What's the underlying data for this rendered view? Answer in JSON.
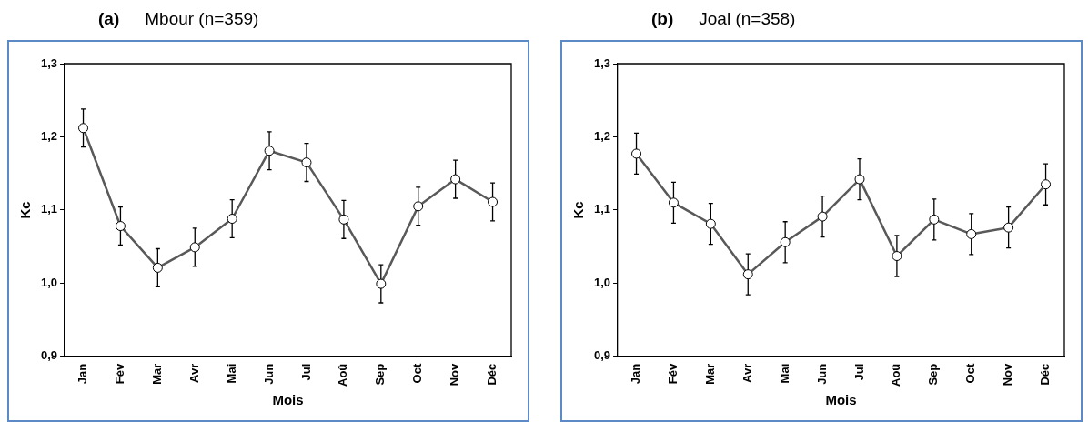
{
  "chart_data": [
    {
      "type": "line",
      "title": "(a) Mbour (n=359)",
      "xlabel": "Mois",
      "ylabel": "Kc",
      "categories": [
        "Jan",
        "Fév",
        "Mar",
        "Avr",
        "Mai",
        "Jun",
        "Jul",
        "Aoû",
        "Sep",
        "Oct",
        "Nov",
        "Déc"
      ],
      "series": [
        {
          "color": "#595959",
          "values": [
            1.212,
            1.078,
            1.021,
            1.049,
            1.088,
            1.181,
            1.165,
            1.087,
            0.999,
            1.105,
            1.142,
            1.111
          ],
          "errors": [
            0.026,
            0.026,
            0.026,
            0.026,
            0.026,
            0.026,
            0.026,
            0.026,
            0.026,
            0.026,
            0.026,
            0.026
          ]
        }
      ],
      "ylim": [
        0.9,
        1.3
      ],
      "yticks": [
        {
          "value": 0.9,
          "label": "0,9"
        },
        {
          "value": 1.0,
          "label": "1,0"
        },
        {
          "value": 1.1,
          "label": "1,1"
        },
        {
          "value": 1.2,
          "label": "1,2"
        },
        {
          "value": 1.3,
          "label": "1,3"
        }
      ],
      "marker": "circle",
      "line_style": "solid",
      "grid": false,
      "legend": false
    },
    {
      "type": "line",
      "title": "(b) Joal (n=358)",
      "xlabel": "Mois",
      "ylabel": "Kc",
      "categories": [
        "Jan",
        "Fév",
        "Mar",
        "Avr",
        "Mai",
        "Jun",
        "Jul",
        "Aoû",
        "Sep",
        "Oct",
        "Nov",
        "Déc"
      ],
      "series": [
        {
          "color": "#595959",
          "values": [
            1.177,
            1.11,
            1.081,
            1.012,
            1.056,
            1.091,
            1.142,
            1.037,
            1.087,
            1.067,
            1.076,
            1.135
          ],
          "errors": [
            0.028,
            0.028,
            0.028,
            0.028,
            0.028,
            0.028,
            0.028,
            0.028,
            0.028,
            0.028,
            0.028,
            0.028
          ]
        }
      ],
      "ylim": [
        0.9,
        1.3
      ],
      "yticks": [
        {
          "value": 0.9,
          "label": "0,9"
        },
        {
          "value": 1.0,
          "label": "1,0"
        },
        {
          "value": 1.1,
          "label": "1,1"
        },
        {
          "value": 1.2,
          "label": "1,2"
        },
        {
          "value": 1.3,
          "label": "1,3"
        }
      ],
      "marker": "circle",
      "line_style": "solid",
      "grid": false,
      "legend": false
    }
  ]
}
